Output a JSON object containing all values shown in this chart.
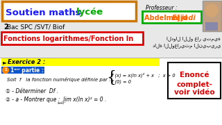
{
  "title_soutien": "Soutien maths ",
  "title_lycee": "lycée",
  "professeur_label": "Professeur :",
  "prof_first": "Abdelmajid ",
  "prof_last": "El jadi",
  "bac_line_bold": "2",
  "bac_line_rest": "Bac SPC /SVT/ Biof",
  "fonctions_line": "Fonctions logarithmes/Fonction ln",
  "arabic_line1": "الدوال اللو غار يتمية",
  "arabic_line2": "دالة اللوغاريثم النيبيري",
  "exercice_label": "Exercice 2 :",
  "soit_text": "Soit  f   la fonction numérique définie par :",
  "fx_line1": "f (x) = x(ln x)² + x   ;  x > 0",
  "fx_line2": "f (0) = 0",
  "q1": "① - Déterminer  Df .",
  "q2a": "② - a - Montrer que :  lim x(ln x)² = 0 .",
  "enonce_line1": "Enoncé",
  "enonce_line2": "complet-",
  "enonce_line3": "voir vidéo",
  "bg_white": "#ffffff",
  "bg_yellow": "#ffff00",
  "color_blue": "#1a1aff",
  "color_green": "#00aa00",
  "color_red": "#dd0000",
  "color_orange": "#ff6600",
  "color_dark_blue": "#0000aa",
  "orange_border": "#cc7700",
  "photo_bg": "#c0a080"
}
